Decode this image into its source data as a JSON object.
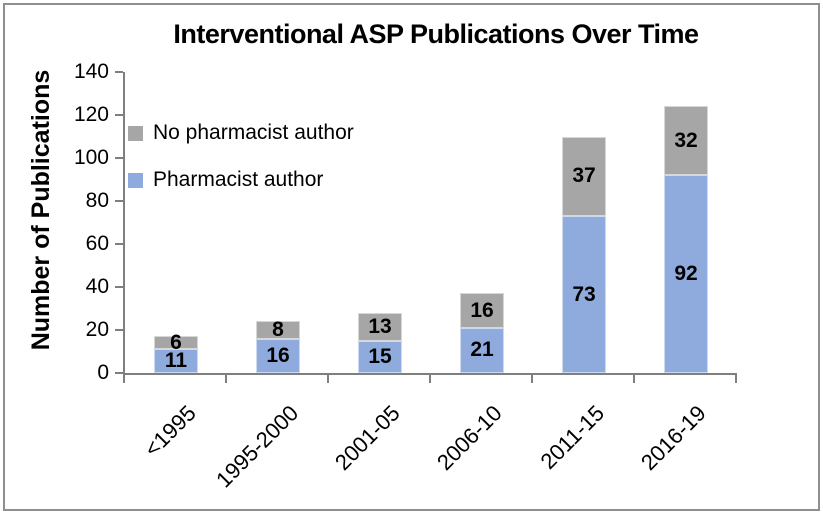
{
  "frame": {
    "border_color": "#8f8f8f",
    "background": "#ffffff"
  },
  "chart_data": {
    "type": "bar",
    "stacked": true,
    "title": "Interventional ASP Publications Over Time",
    "xlabel": "",
    "ylabel": "Number of Publications",
    "categories": [
      "<1995",
      "1995-2000",
      "2001-05",
      "2006-10",
      "2011-15",
      "2016-19"
    ],
    "series": [
      {
        "name": "Pharmacist author",
        "color": "#8faadc",
        "values": [
          11,
          16,
          15,
          21,
          73,
          92
        ]
      },
      {
        "name": "No pharmacist author",
        "color": "#a6a6a6",
        "values": [
          6,
          8,
          13,
          16,
          37,
          32
        ]
      }
    ],
    "stack_totals": [
      17,
      24,
      28,
      37,
      110,
      124
    ],
    "ylim": [
      0,
      140
    ],
    "yticks": [
      0,
      20,
      40,
      60,
      80,
      100,
      120,
      140
    ],
    "grid": false,
    "data_labels": true,
    "legend_position": "inside-top-left",
    "legend_order": [
      1,
      0
    ],
    "axis_color": "#7f7f7f",
    "text_color": "#000000"
  }
}
